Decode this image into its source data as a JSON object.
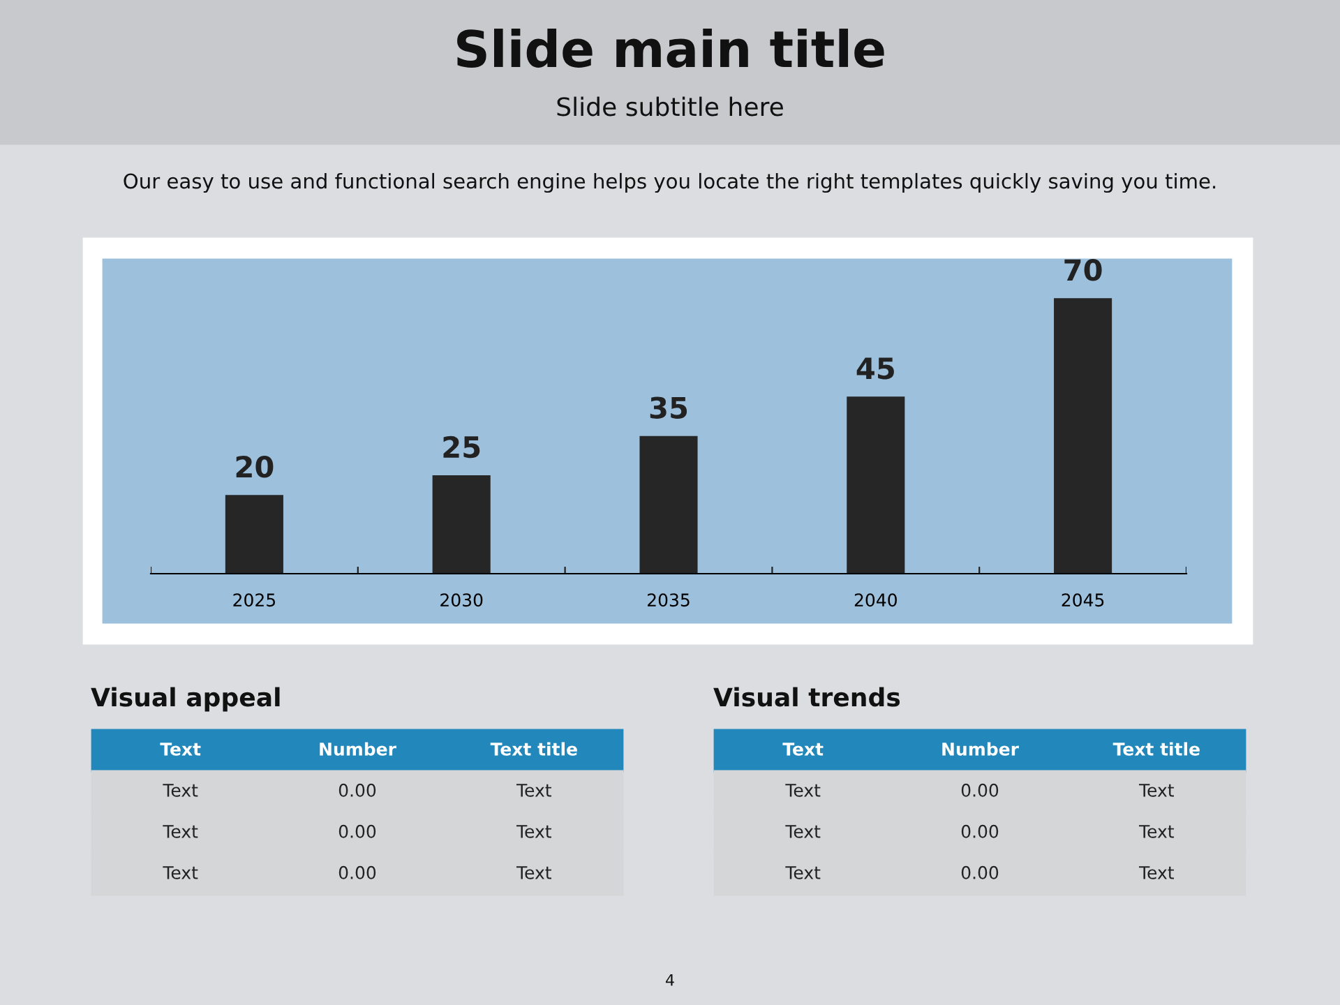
{
  "chart_data": [
    {
      "type": "bar",
      "title": "Slide main title",
      "subtitle": "Slide subtitle here",
      "annotations": [
        "Our easy to use and functional search engine helps you locate the right templates quickly saving you time.",
        "4"
      ],
      "categories": [
        "2025",
        "2030",
        "2035",
        "2040",
        "2045"
      ],
      "values": [
        20,
        25,
        35,
        45,
        70
      ],
      "color": "#262626",
      "data_labels": true,
      "grid": false
    },
    {
      "type": "other",
      "title": "Visual appeal",
      "annotations": [
        "Text",
        "Number",
        "Text title",
        "Text",
        "0.00",
        "Text",
        "Text",
        "0.00",
        "Text",
        "Text",
        "0.00",
        "Text"
      ]
    },
    {
      "type": "other",
      "title": "Visual trends",
      "annotations": [
        "Text",
        "Number",
        "Text title",
        "Text",
        "0.00",
        "Text",
        "Text",
        "0.00",
        "Text",
        "Text",
        "0.00",
        "Text"
      ]
    }
  ]
}
